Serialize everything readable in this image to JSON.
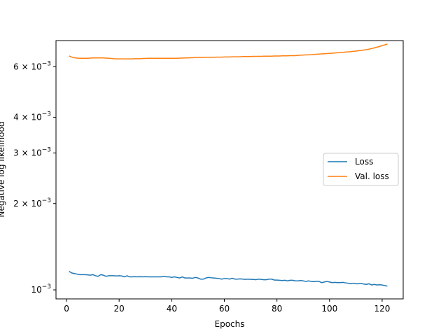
{
  "chart_data": {
    "type": "line",
    "title": "",
    "xlabel": "Epochs",
    "ylabel": "Negative log likelihood",
    "yscale": "log",
    "xlim": [
      -4,
      128
    ],
    "ylim": [
      0.00093,
      0.0074
    ],
    "x_ticks": [
      0,
      20,
      40,
      60,
      80,
      100,
      120
    ],
    "x_tick_labels": [
      "0",
      "20",
      "40",
      "60",
      "80",
      "100",
      "120"
    ],
    "y_ticks": [
      0.001,
      0.002,
      0.003,
      0.004,
      0.006
    ],
    "y_tick_labels": [
      {
        "mant": "10",
        "exp": "−3"
      },
      {
        "mant": "2 × 10",
        "exp": "−3"
      },
      {
        "mant": "3 × 10",
        "exp": "−3"
      },
      {
        "mant": "4 × 10",
        "exp": "−3"
      },
      {
        "mant": "6 × 10",
        "exp": "−3"
      }
    ],
    "legend": {
      "position": "center-right",
      "entries": [
        "Loss",
        "Val. loss"
      ]
    },
    "series": [
      {
        "name": "Loss",
        "color": "#1f77b4",
        "x": [
          1,
          2,
          3,
          4,
          5,
          6,
          7,
          8,
          9,
          10,
          11,
          12,
          13,
          14,
          15,
          16,
          17,
          18,
          19,
          20,
          21,
          22,
          23,
          24,
          25,
          26,
          27,
          28,
          29,
          30,
          31,
          32,
          33,
          34,
          35,
          36,
          37,
          38,
          39,
          40,
          41,
          42,
          43,
          44,
          45,
          46,
          47,
          48,
          49,
          50,
          51,
          52,
          53,
          54,
          55,
          56,
          57,
          58,
          59,
          60,
          61,
          62,
          63,
          64,
          65,
          66,
          67,
          68,
          69,
          70,
          71,
          72,
          73,
          74,
          75,
          76,
          77,
          78,
          79,
          80,
          81,
          82,
          83,
          84,
          85,
          86,
          87,
          88,
          89,
          90,
          91,
          92,
          93,
          94,
          95,
          96,
          97,
          98,
          99,
          100,
          101,
          102,
          103,
          104,
          105,
          106,
          107,
          108,
          109,
          110,
          111,
          112,
          113,
          114,
          115,
          116,
          117,
          118,
          119,
          120,
          121,
          122
        ],
        "y": [
          0.00116,
          0.001145,
          0.00114,
          0.001135,
          0.00113,
          0.00113,
          0.00113,
          0.001128,
          0.001125,
          0.00113,
          0.00112,
          0.001115,
          0.00113,
          0.001125,
          0.001115,
          0.00112,
          0.00112,
          0.00112,
          0.001118,
          0.00112,
          0.001118,
          0.00111,
          0.00112,
          0.00111,
          0.00111,
          0.001112,
          0.00111,
          0.001112,
          0.00111,
          0.001112,
          0.00111,
          0.00111,
          0.00111,
          0.00111,
          0.00111,
          0.00111,
          0.001115,
          0.00111,
          0.00111,
          0.001105,
          0.00111,
          0.001105,
          0.0011,
          0.00111,
          0.0011,
          0.0011,
          0.0011,
          0.001098,
          0.001105,
          0.0011,
          0.00109,
          0.00109,
          0.0011,
          0.001105,
          0.001102,
          0.0011,
          0.001098,
          0.001095,
          0.00109,
          0.001095,
          0.001095,
          0.00109,
          0.001098,
          0.00109,
          0.00109,
          0.001092,
          0.00109,
          0.001088,
          0.00109,
          0.001088,
          0.001088,
          0.001085,
          0.00109,
          0.001088,
          0.001085,
          0.001085,
          0.00109,
          0.00109,
          0.001082,
          0.001082,
          0.00108,
          0.001078,
          0.00108,
          0.001075,
          0.00108,
          0.00108,
          0.001075,
          0.001075,
          0.001078,
          0.001075,
          0.00107,
          0.001075,
          0.00107,
          0.001068,
          0.001072,
          0.00107,
          0.00106,
          0.001065,
          0.00107,
          0.001065,
          0.00106,
          0.001062,
          0.00106,
          0.00106,
          0.001062,
          0.001058,
          0.001055,
          0.00105,
          0.001055,
          0.00105,
          0.00105,
          0.001052,
          0.001048,
          0.001045,
          0.00105,
          0.00104,
          0.001045,
          0.00104,
          0.001042,
          0.00104,
          0.001035,
          0.00103
        ]
      },
      {
        "name": "Val. loss",
        "color": "#ff7f0e",
        "x": [
          1,
          2,
          3,
          4,
          5,
          6,
          7,
          8,
          9,
          10,
          11,
          12,
          13,
          14,
          15,
          16,
          17,
          18,
          19,
          20,
          21,
          22,
          23,
          24,
          25,
          26,
          27,
          28,
          29,
          30,
          31,
          32,
          33,
          34,
          35,
          36,
          37,
          38,
          39,
          40,
          41,
          42,
          43,
          44,
          45,
          46,
          47,
          48,
          49,
          50,
          51,
          52,
          53,
          54,
          55,
          56,
          57,
          58,
          59,
          60,
          61,
          62,
          63,
          64,
          65,
          66,
          67,
          68,
          69,
          70,
          71,
          72,
          73,
          74,
          75,
          76,
          77,
          78,
          79,
          80,
          81,
          82,
          83,
          84,
          85,
          86,
          87,
          88,
          89,
          90,
          91,
          92,
          93,
          94,
          95,
          96,
          97,
          98,
          99,
          100,
          101,
          102,
          103,
          104,
          105,
          106,
          107,
          108,
          109,
          110,
          111,
          112,
          113,
          114,
          115,
          116,
          117,
          118,
          119,
          120,
          121,
          122
        ],
        "y": [
          0.00654,
          0.00648,
          0.00645,
          0.00643,
          0.00642,
          0.00642,
          0.00642,
          0.00642,
          0.00643,
          0.00644,
          0.00644,
          0.00644,
          0.00644,
          0.00644,
          0.00643,
          0.00642,
          0.00641,
          0.0064,
          0.00639,
          0.00639,
          0.00639,
          0.00639,
          0.00639,
          0.00639,
          0.00639,
          0.0064,
          0.0064,
          0.0064,
          0.00641,
          0.00641,
          0.00642,
          0.00642,
          0.00642,
          0.00642,
          0.00642,
          0.00642,
          0.00642,
          0.00642,
          0.00642,
          0.00642,
          0.00642,
          0.00642,
          0.00643,
          0.00643,
          0.00644,
          0.00644,
          0.00645,
          0.00645,
          0.00646,
          0.00646,
          0.00646,
          0.00647,
          0.00647,
          0.00647,
          0.00647,
          0.00647,
          0.00648,
          0.00648,
          0.00648,
          0.00649,
          0.00649,
          0.00649,
          0.0065,
          0.0065,
          0.0065,
          0.0065,
          0.00651,
          0.00651,
          0.00651,
          0.00651,
          0.00652,
          0.00652,
          0.00652,
          0.00652,
          0.00653,
          0.00653,
          0.00653,
          0.00653,
          0.00654,
          0.00654,
          0.00654,
          0.00655,
          0.00655,
          0.00655,
          0.00656,
          0.00656,
          0.00656,
          0.00657,
          0.00658,
          0.00659,
          0.0066,
          0.0066,
          0.00661,
          0.00662,
          0.00663,
          0.00664,
          0.00665,
          0.00666,
          0.00667,
          0.00668,
          0.00669,
          0.0067,
          0.00671,
          0.00672,
          0.00673,
          0.00675,
          0.00676,
          0.00677,
          0.00679,
          0.0068,
          0.00682,
          0.00684,
          0.00686,
          0.00688,
          0.00691,
          0.00694,
          0.00698,
          0.00702,
          0.00706,
          0.00711,
          0.00715,
          0.0072
        ]
      }
    ]
  }
}
